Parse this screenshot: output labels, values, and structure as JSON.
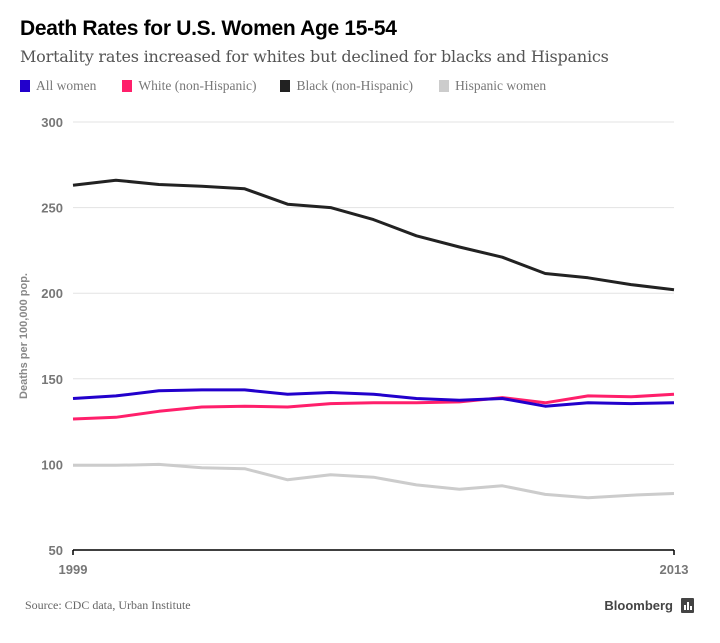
{
  "chart_data": {
    "type": "line",
    "title": "Death Rates for U.S. Women Age 15-54",
    "subtitle": "Mortality rates increased for whites but declined for blacks and Hispanics",
    "xlabel": "",
    "ylabel": "Deaths per 100,000 pop.",
    "x": [
      1999,
      2000,
      2001,
      2002,
      2003,
      2004,
      2005,
      2006,
      2007,
      2008,
      2009,
      2010,
      2011,
      2012,
      2013
    ],
    "x_tick_labels": [
      "1999",
      "2013"
    ],
    "ylim": [
      50,
      300
    ],
    "y_ticks": [
      50,
      100,
      150,
      200,
      250,
      300
    ],
    "grid": true,
    "legend_position": "top-left",
    "series": [
      {
        "name": "All women",
        "color": "#2200cc",
        "values": [
          138.5,
          140,
          143,
          143.5,
          143.5,
          141,
          142,
          141,
          138.5,
          137.5,
          138.5,
          134,
          136,
          135.5,
          136
        ]
      },
      {
        "name": "White (non-Hispanic)",
        "color": "#ff1f6b",
        "values": [
          126.5,
          127.5,
          131,
          133.5,
          134,
          133.5,
          135.5,
          136,
          136,
          136.5,
          139,
          136,
          140,
          139.5,
          141
        ]
      },
      {
        "name": "Black (non-Hispanic)",
        "color": "#222222",
        "values": [
          263,
          266,
          263.5,
          262.5,
          261,
          252,
          250,
          243,
          233.5,
          227,
          221,
          211.5,
          209,
          205,
          202
        ]
      },
      {
        "name": "Hispanic women",
        "color": "#cccccc",
        "values": [
          99.5,
          99.5,
          100,
          98,
          97.5,
          91,
          94,
          92.5,
          88,
          85.5,
          87.5,
          82.5,
          80.5,
          82,
          83
        ]
      }
    ]
  },
  "footer": {
    "source": "Source: CDC data, Urban Institute",
    "brand": "Bloomberg"
  }
}
